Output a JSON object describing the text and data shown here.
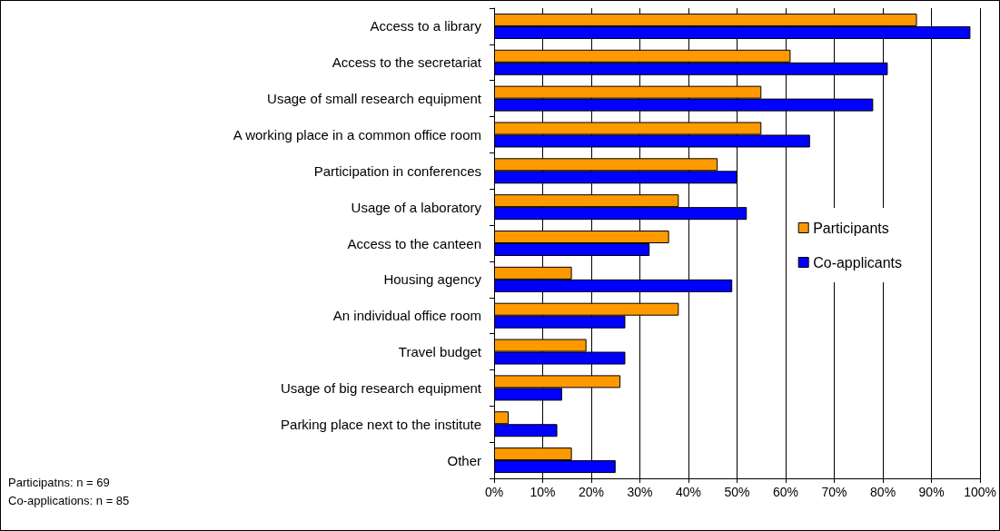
{
  "chart_data": {
    "type": "bar",
    "orientation": "horizontal",
    "categories": [
      "Access to a library",
      "Access to the secretariat",
      "Usage of small research equipment",
      "A working place in a common office room",
      "Participation in conferences",
      "Usage of a laboratory",
      "Access to the canteen",
      "Housing agency",
      "An individual office room",
      "Travel budget",
      "Usage of big research equipment",
      "Parking place next to the institute",
      "Other"
    ],
    "series": [
      {
        "name": "Participants",
        "color": "#ff9900",
        "values": [
          87,
          61,
          55,
          55,
          46,
          38,
          36,
          16,
          38,
          19,
          26,
          3,
          16
        ]
      },
      {
        "name": "Co-applicants",
        "color": "#0000ff",
        "values": [
          98,
          81,
          78,
          65,
          50,
          52,
          32,
          49,
          27,
          27,
          14,
          13,
          25
        ]
      }
    ],
    "xlim": [
      0,
      100
    ],
    "xticks": [
      {
        "value": 0,
        "label": "0%"
      },
      {
        "value": 10,
        "label": "10%"
      },
      {
        "value": 20,
        "label": "20%"
      },
      {
        "value": 30,
        "label": "30%"
      },
      {
        "value": 40,
        "label": "40%"
      },
      {
        "value": 50,
        "label": "50%"
      },
      {
        "value": 60,
        "label": "60%"
      },
      {
        "value": 70,
        "label": "70%"
      },
      {
        "value": 80,
        "label": "80%"
      },
      {
        "value": 90,
        "label": "90%"
      },
      {
        "value": 100,
        "label": "100%"
      }
    ],
    "grid": "x",
    "legend": "right",
    "annotations": [
      "Participatns: n = 69",
      "Co-applications: n = 85"
    ]
  }
}
